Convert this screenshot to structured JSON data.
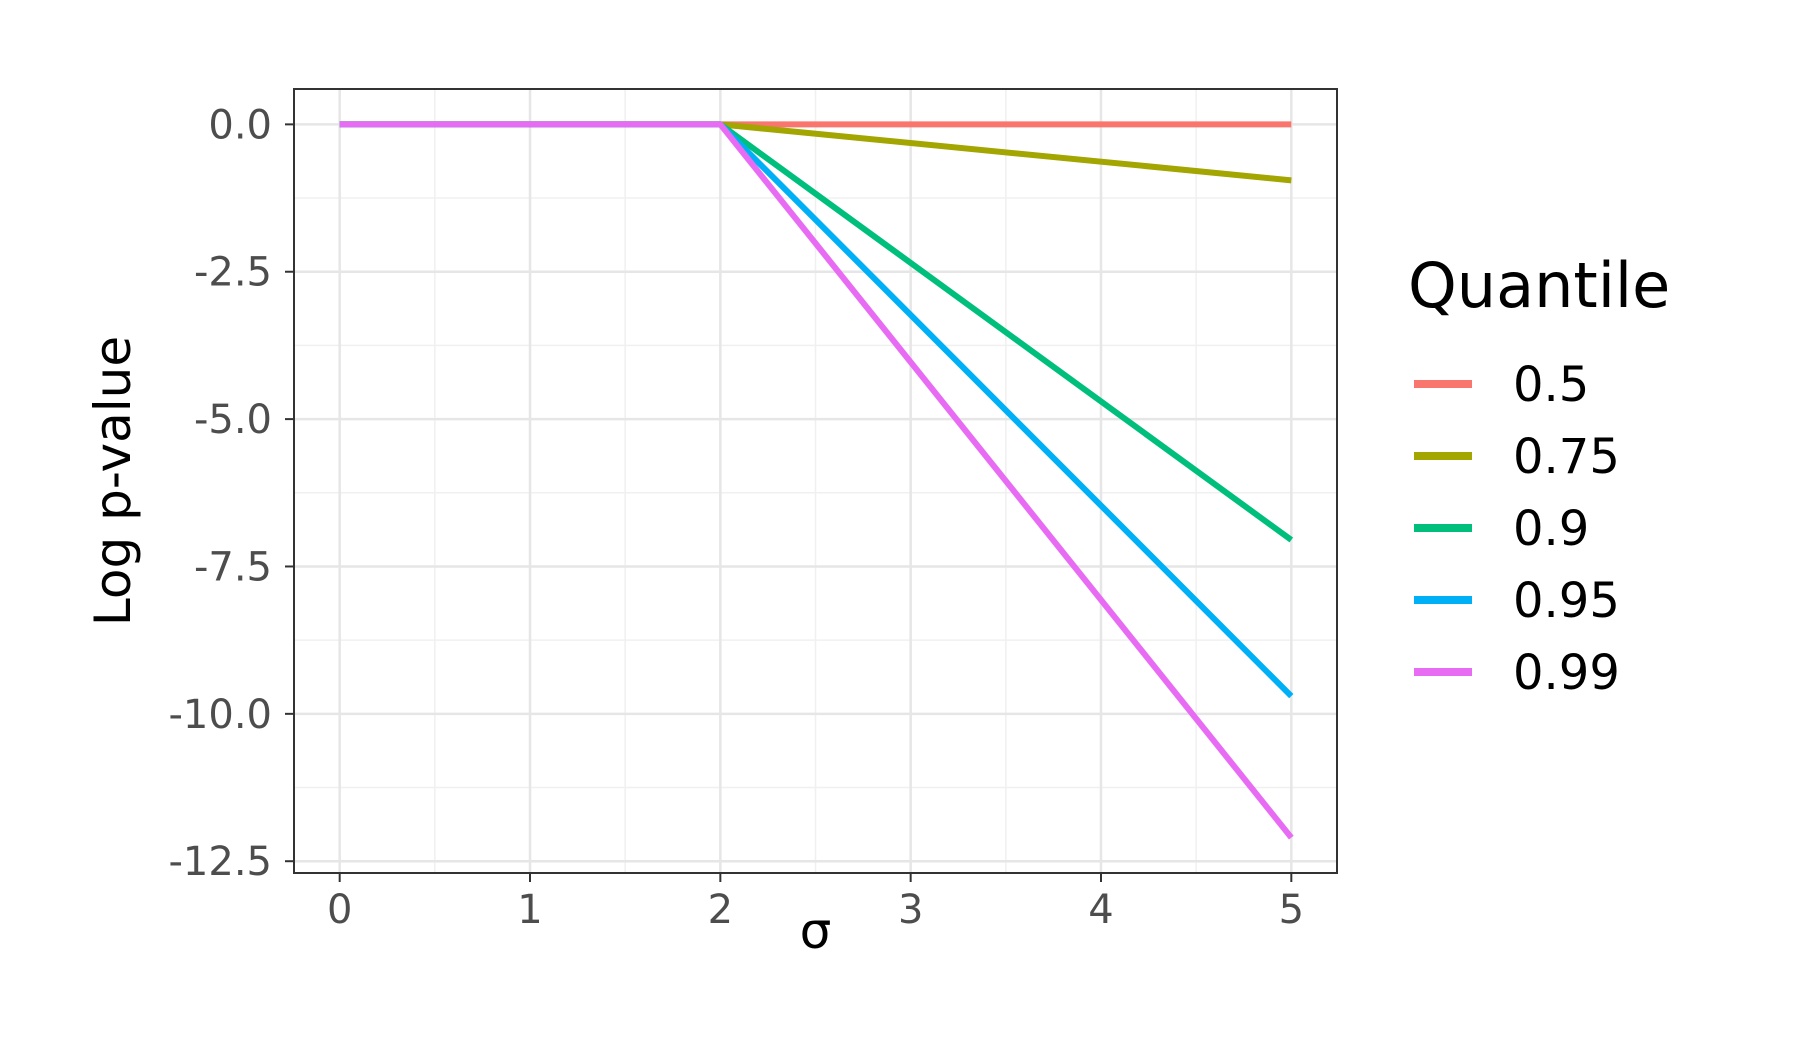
{
  "chart_data": {
    "type": "line",
    "xlabel": "σ",
    "ylabel": "Log p-value",
    "xlim": [
      -0.24,
      5.24
    ],
    "ylim": [
      -12.7,
      0.6
    ],
    "x_ticks": [
      0,
      1,
      2,
      3,
      4,
      5
    ],
    "y_ticks": [
      0.0,
      -2.5,
      -5.0,
      -7.5,
      -10.0,
      -12.5
    ],
    "x_tick_labels": [
      "0",
      "1",
      "2",
      "3",
      "4",
      "5"
    ],
    "y_tick_labels": [
      "0.0",
      "-2.5",
      "-5.0",
      "-7.5",
      "-10.0",
      "-12.5"
    ],
    "grid": true,
    "legend": {
      "title": "Quantile",
      "position": "right"
    },
    "series": [
      {
        "name": "0.5",
        "color": "#F8766D",
        "x": [
          0,
          2,
          5
        ],
        "y": [
          0.0,
          0.0,
          0.0
        ]
      },
      {
        "name": "0.75",
        "color": "#A3A500",
        "x": [
          0,
          2,
          5
        ],
        "y": [
          0.0,
          0.0,
          -0.95
        ]
      },
      {
        "name": "0.9",
        "color": "#00BF7D",
        "x": [
          0,
          2,
          5
        ],
        "y": [
          0.0,
          0.0,
          -7.05
        ]
      },
      {
        "name": "0.95",
        "color": "#00B0F6",
        "x": [
          0,
          2,
          5
        ],
        "y": [
          0.0,
          0.0,
          -9.7
        ]
      },
      {
        "name": "0.99",
        "color": "#E76BF3",
        "x": [
          0,
          2,
          5
        ],
        "y": [
          0.0,
          0.0,
          -12.1
        ]
      }
    ]
  }
}
